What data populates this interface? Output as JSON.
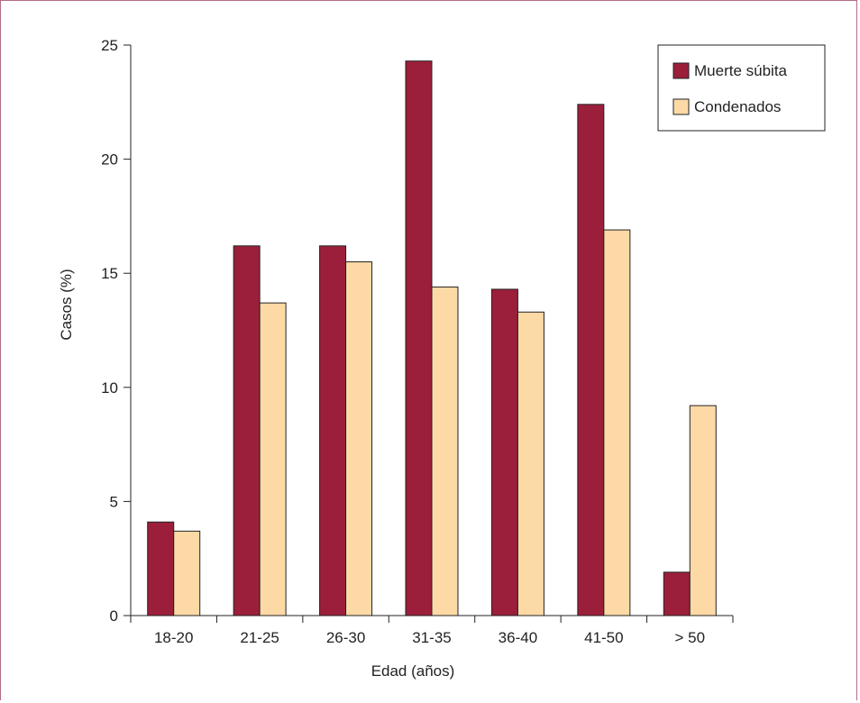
{
  "chart_data": {
    "type": "bar",
    "categories": [
      "18-20",
      "21-25",
      "26-30",
      "31-35",
      "36-40",
      "41-50",
      "> 50"
    ],
    "series": [
      {
        "name": "Muerte súbita",
        "color": "#9b1f3a",
        "values": [
          4.1,
          16.2,
          16.2,
          24.3,
          14.3,
          22.4,
          1.9
        ]
      },
      {
        "name": "Condenados",
        "color": "#fdd9a6",
        "values": [
          3.7,
          13.7,
          15.5,
          14.4,
          13.3,
          16.9,
          9.2
        ]
      }
    ],
    "xlabel": "Edad (años)",
    "ylabel": "Casos (%)",
    "ylim": [
      0,
      25
    ],
    "yticks": [
      0,
      5,
      10,
      15,
      20,
      25
    ],
    "grid": false,
    "legend_position": "top-right"
  },
  "colors": {
    "frame": "#b36a85",
    "axis": "#222222"
  }
}
